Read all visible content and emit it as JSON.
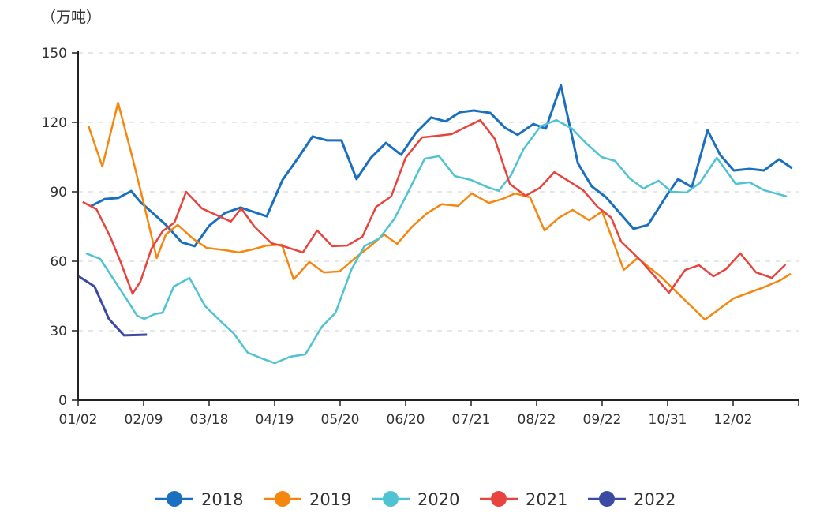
{
  "chart_data": {
    "type": "line",
    "title": "",
    "ylabel": "（万吨）",
    "xlabel": "",
    "ylim": [
      0,
      150
    ],
    "yticks": [
      0,
      30,
      60,
      90,
      120,
      150
    ],
    "xlim": [
      0,
      11
    ],
    "xtick_labels": [
      "01/02",
      "02/09",
      "03/18",
      "04/19",
      "05/20",
      "06/20",
      "07/21",
      "08/22",
      "09/22",
      "10/31",
      "12/02"
    ],
    "x_unit_note": "x measured in tick positions (0 = 01/02, 1 = 02/09, ...)",
    "grid": "horizontal dashed",
    "legend_position": "bottom",
    "series": [
      {
        "name": "2018",
        "color": "#1a6fbf",
        "points": [
          [
            0.2,
            83.9
          ],
          [
            0.41,
            86.9
          ],
          [
            0.61,
            87.3
          ],
          [
            0.81,
            90.3
          ],
          [
            0.95,
            85.6
          ],
          [
            1.14,
            80.8
          ],
          [
            1.34,
            75.7
          ],
          [
            1.58,
            68.2
          ],
          [
            1.78,
            66.5
          ],
          [
            2.0,
            75.3
          ],
          [
            2.24,
            80.8
          ],
          [
            2.48,
            83.2
          ],
          [
            2.88,
            79.4
          ],
          [
            3.12,
            95.1
          ],
          [
            3.36,
            104.7
          ],
          [
            3.58,
            113.9
          ],
          [
            3.8,
            112.2
          ],
          [
            4.02,
            112.2
          ],
          [
            4.25,
            95.5
          ],
          [
            4.47,
            104.7
          ],
          [
            4.7,
            111.1
          ],
          [
            4.93,
            106
          ],
          [
            5.16,
            115.6
          ],
          [
            5.39,
            122.1
          ],
          [
            5.61,
            120.4
          ],
          [
            5.83,
            124.4
          ],
          [
            6.04,
            125.1
          ],
          [
            6.29,
            124.1
          ],
          [
            6.52,
            117.6
          ],
          [
            6.71,
            114.6
          ],
          [
            6.95,
            119.3
          ],
          [
            7.14,
            117.3
          ],
          [
            7.37,
            136
          ],
          [
            7.63,
            102.3
          ],
          [
            7.84,
            92.4
          ],
          [
            8.06,
            87.6
          ],
          [
            8.48,
            74
          ],
          [
            8.7,
            75.7
          ],
          [
            8.99,
            88.6
          ],
          [
            9.16,
            95.5
          ],
          [
            9.37,
            92
          ],
          [
            9.61,
            116.6
          ],
          [
            9.8,
            106
          ],
          [
            10.01,
            99.2
          ],
          [
            10.25,
            99.9
          ],
          [
            10.47,
            99.2
          ],
          [
            10.7,
            104
          ],
          [
            10.9,
            100.2
          ]
        ]
      },
      {
        "name": "2019",
        "color": "#f5870f",
        "points": [
          [
            0.16,
            118.3
          ],
          [
            0.37,
            100.9
          ],
          [
            0.61,
            128.5
          ],
          [
            0.83,
            104.7
          ],
          [
            1.0,
            85.2
          ],
          [
            1.2,
            61.4
          ],
          [
            1.34,
            71.6
          ],
          [
            1.52,
            75.7
          ],
          [
            1.76,
            69.6
          ],
          [
            1.96,
            65.8
          ],
          [
            2.24,
            64.8
          ],
          [
            2.45,
            63.8
          ],
          [
            2.66,
            65.1
          ],
          [
            2.88,
            66.8
          ],
          [
            3.11,
            67.2
          ],
          [
            3.29,
            52.2
          ],
          [
            3.53,
            59.7
          ],
          [
            3.75,
            55.2
          ],
          [
            3.99,
            55.6
          ],
          [
            4.23,
            61.4
          ],
          [
            4.47,
            66.8
          ],
          [
            4.67,
            71.6
          ],
          [
            4.87,
            67.5
          ],
          [
            5.1,
            75
          ],
          [
            5.33,
            80.8
          ],
          [
            5.55,
            84.6
          ],
          [
            5.8,
            83.9
          ],
          [
            6.01,
            89.3
          ],
          [
            6.27,
            85.2
          ],
          [
            6.48,
            86.9
          ],
          [
            6.67,
            89.3
          ],
          [
            6.9,
            87.6
          ],
          [
            7.12,
            73.3
          ],
          [
            7.34,
            78.8
          ],
          [
            7.55,
            82.2
          ],
          [
            7.8,
            77.7
          ],
          [
            8.0,
            81.5
          ],
          [
            8.33,
            56.3
          ],
          [
            8.54,
            61.4
          ],
          [
            8.89,
            53.5
          ],
          [
            9.57,
            34.8
          ],
          [
            10.01,
            44
          ],
          [
            10.47,
            48.8
          ],
          [
            10.72,
            51.8
          ],
          [
            10.88,
            54.6
          ]
        ]
      },
      {
        "name": "2020",
        "color": "#4fc3d2",
        "points": [
          [
            0.12,
            63.4
          ],
          [
            0.34,
            61
          ],
          [
            0.55,
            51.8
          ],
          [
            0.77,
            42.3
          ],
          [
            0.9,
            36.5
          ],
          [
            1.01,
            35.1
          ],
          [
            1.17,
            37.2
          ],
          [
            1.29,
            37.8
          ],
          [
            1.46,
            49.1
          ],
          [
            1.7,
            52.8
          ],
          [
            1.94,
            40.6
          ],
          [
            2.19,
            33.7
          ],
          [
            2.37,
            29
          ],
          [
            2.59,
            20.5
          ],
          [
            2.8,
            18.1
          ],
          [
            3.0,
            16
          ],
          [
            3.24,
            18.8
          ],
          [
            3.47,
            19.8
          ],
          [
            3.72,
            31.7
          ],
          [
            3.93,
            37.8
          ],
          [
            4.17,
            56.3
          ],
          [
            4.37,
            66.5
          ],
          [
            4.6,
            69.9
          ],
          [
            4.83,
            78.4
          ],
          [
            5.04,
            90
          ],
          [
            5.29,
            104.3
          ],
          [
            5.51,
            105.4
          ],
          [
            5.75,
            96.8
          ],
          [
            6.0,
            95.1
          ],
          [
            6.24,
            92.1
          ],
          [
            6.42,
            90.4
          ],
          [
            6.61,
            97.2
          ],
          [
            6.8,
            108.4
          ],
          [
            7.06,
            118.3
          ],
          [
            7.3,
            121
          ],
          [
            7.54,
            117.3
          ],
          [
            7.75,
            111.1
          ],
          [
            7.99,
            105
          ],
          [
            8.2,
            103.3
          ],
          [
            8.42,
            95.8
          ],
          [
            8.63,
            91.4
          ],
          [
            8.86,
            94.8
          ],
          [
            9.06,
            90
          ],
          [
            9.29,
            89.7
          ],
          [
            9.49,
            93.8
          ],
          [
            9.75,
            104.7
          ],
          [
            10.04,
            93.4
          ],
          [
            10.25,
            94.1
          ],
          [
            10.47,
            90.7
          ],
          [
            10.82,
            88
          ]
        ]
      },
      {
        "name": "2021",
        "color": "#e8433c",
        "points": [
          [
            0.07,
            85.6
          ],
          [
            0.28,
            82.5
          ],
          [
            0.49,
            70.6
          ],
          [
            0.64,
            60.3
          ],
          [
            0.83,
            46
          ],
          [
            0.95,
            51.1
          ],
          [
            1.12,
            65.5
          ],
          [
            1.29,
            73
          ],
          [
            1.47,
            76.7
          ],
          [
            1.65,
            90
          ],
          [
            1.89,
            82.8
          ],
          [
            2.07,
            80.5
          ],
          [
            2.33,
            77.1
          ],
          [
            2.49,
            82.8
          ],
          [
            2.69,
            75
          ],
          [
            2.95,
            67.8
          ],
          [
            3.18,
            66.1
          ],
          [
            3.43,
            63.8
          ],
          [
            3.65,
            73.3
          ],
          [
            3.88,
            66.5
          ],
          [
            4.11,
            66.8
          ],
          [
            4.34,
            70.6
          ],
          [
            4.55,
            83.5
          ],
          [
            4.78,
            88
          ],
          [
            5.0,
            104.7
          ],
          [
            5.25,
            113.5
          ],
          [
            5.49,
            114.2
          ],
          [
            5.7,
            114.9
          ],
          [
            5.92,
            118
          ],
          [
            6.14,
            121
          ],
          [
            6.36,
            112.9
          ],
          [
            6.59,
            93.4
          ],
          [
            6.83,
            88.3
          ],
          [
            7.05,
            91.7
          ],
          [
            7.27,
            98.5
          ],
          [
            7.48,
            94.8
          ],
          [
            7.71,
            90.7
          ],
          [
            7.93,
            83.5
          ],
          [
            8.14,
            78.8
          ],
          [
            8.29,
            68.5
          ],
          [
            8.6,
            60
          ],
          [
            9.02,
            46.4
          ],
          [
            9.27,
            56.3
          ],
          [
            9.48,
            58.3
          ],
          [
            9.7,
            53.5
          ],
          [
            9.89,
            56.6
          ],
          [
            10.11,
            63.4
          ],
          [
            10.35,
            55.2
          ],
          [
            10.59,
            52.8
          ],
          [
            10.8,
            58.6
          ]
        ]
      },
      {
        "name": "2022",
        "color": "#3b4aa3",
        "points": [
          [
            0.01,
            53.5
          ],
          [
            0.25,
            49.1
          ],
          [
            0.47,
            35.1
          ],
          [
            0.7,
            28
          ],
          [
            1.05,
            28.3
          ]
        ]
      }
    ]
  }
}
